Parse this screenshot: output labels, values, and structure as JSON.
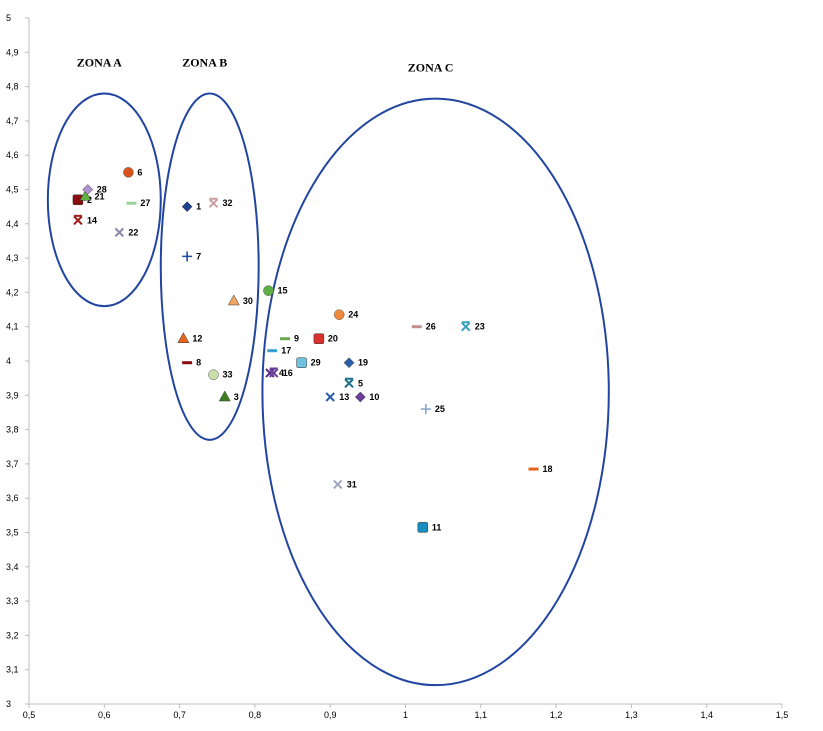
{
  "chart_data": {
    "type": "scatter",
    "title": "",
    "xlabel": "",
    "ylabel": "",
    "xlim": [
      0.5,
      1.5
    ],
    "ylim": [
      3,
      5
    ],
    "grid": false,
    "x_ticks": [
      "0,5",
      "0,6",
      "0,7",
      "0,8",
      "0,9",
      "1",
      "1,1",
      "1,2",
      "1,3",
      "1,4",
      "1,5"
    ],
    "y_ticks": [
      "3",
      "3,1",
      "3,2",
      "3,3",
      "3,4",
      "3,5",
      "3,6",
      "3,7",
      "3,8",
      "3,9",
      "4",
      "4,1",
      "4,2",
      "4,3",
      "4,4",
      "4,5",
      "4,6",
      "4,7",
      "4,8",
      "4,9",
      "5"
    ],
    "zones": [
      {
        "label": "ZONA A",
        "cx": 0.6,
        "cy": 4.47,
        "rx": 0.075,
        "ry": 0.31
      },
      {
        "label": "ZONA B",
        "cx": 0.74,
        "cy": 4.275,
        "rx": 0.065,
        "ry": 0.505
      },
      {
        "label": "ZONA C",
        "cx": 1.04,
        "cy": 3.91,
        "rx": 0.23,
        "ry": 0.855
      }
    ],
    "points": [
      {
        "label": "1",
        "x": 0.71,
        "y": 4.45,
        "marker": "diamond",
        "color": "#1f3f8f"
      },
      {
        "label": "2",
        "x": 0.565,
        "y": 4.47,
        "marker": "square",
        "color": "#8b0d0d"
      },
      {
        "label": "3",
        "x": 0.76,
        "y": 3.895,
        "marker": "triangle",
        "color": "#3d7d1f"
      },
      {
        "label": "4",
        "x": 0.82,
        "y": 3.965,
        "marker": "x",
        "color": "#5a2d82"
      },
      {
        "label": "5",
        "x": 0.925,
        "y": 3.935,
        "marker": "xstar",
        "color": "#1b6f8a"
      },
      {
        "label": "6",
        "x": 0.632,
        "y": 4.55,
        "marker": "circle",
        "color": "#d9541a"
      },
      {
        "label": "7",
        "x": 0.71,
        "y": 4.305,
        "marker": "plus",
        "color": "#1f4f9f"
      },
      {
        "label": "8",
        "x": 0.71,
        "y": 3.995,
        "marker": "dash",
        "color": "#8b0d0d"
      },
      {
        "label": "9",
        "x": 0.84,
        "y": 4.065,
        "marker": "dash",
        "color": "#6aa84f"
      },
      {
        "label": "10",
        "x": 0.94,
        "y": 3.895,
        "marker": "diamond",
        "color": "#6a3d9a"
      },
      {
        "label": "11",
        "x": 1.023,
        "y": 3.515,
        "marker": "square",
        "color": "#1a8fbf"
      },
      {
        "label": "12",
        "x": 0.705,
        "y": 4.065,
        "marker": "triangle",
        "color": "#e8641a"
      },
      {
        "label": "13",
        "x": 0.9,
        "y": 3.895,
        "marker": "x",
        "color": "#2b5faa"
      },
      {
        "label": "14",
        "x": 0.565,
        "y": 4.41,
        "marker": "xstar",
        "color": "#a02020"
      },
      {
        "label": "15",
        "x": 0.818,
        "y": 4.205,
        "marker": "circle",
        "color": "#5fb043"
      },
      {
        "label": "16",
        "x": 0.825,
        "y": 3.965,
        "marker": "xstar",
        "color": "#6a3d9a"
      },
      {
        "label": "17",
        "x": 0.823,
        "y": 4.03,
        "marker": "dash",
        "color": "#3a9fcf"
      },
      {
        "label": "18",
        "x": 1.17,
        "y": 3.685,
        "marker": "dash",
        "color": "#e8641a"
      },
      {
        "label": "19",
        "x": 0.925,
        "y": 3.995,
        "marker": "diamond",
        "color": "#2b5faa"
      },
      {
        "label": "20",
        "x": 0.885,
        "y": 4.065,
        "marker": "square",
        "color": "#d93030"
      },
      {
        "label": "21",
        "x": 0.575,
        "y": 4.48,
        "marker": "triangle",
        "color": "#5fb043"
      },
      {
        "label": "22",
        "x": 0.62,
        "y": 4.375,
        "marker": "x",
        "color": "#8a8ab0"
      },
      {
        "label": "23",
        "x": 1.08,
        "y": 4.1,
        "marker": "xstar",
        "color": "#3a9fbf"
      },
      {
        "label": "24",
        "x": 0.912,
        "y": 4.135,
        "marker": "circle",
        "color": "#f08a3a"
      },
      {
        "label": "25",
        "x": 1.027,
        "y": 3.86,
        "marker": "plus",
        "color": "#8aaad0"
      },
      {
        "label": "26",
        "x": 1.015,
        "y": 4.1,
        "marker": "dash",
        "color": "#c09090"
      },
      {
        "label": "27",
        "x": 0.636,
        "y": 4.46,
        "marker": "dash",
        "color": "#9ad09a"
      },
      {
        "label": "28",
        "x": 0.578,
        "y": 4.5,
        "marker": "diamond",
        "color": "#b090d0"
      },
      {
        "label": "29",
        "x": 0.862,
        "y": 3.995,
        "marker": "square",
        "color": "#70c0e0"
      },
      {
        "label": "30",
        "x": 0.772,
        "y": 4.175,
        "marker": "triangle",
        "color": "#f4a460"
      },
      {
        "label": "31",
        "x": 0.91,
        "y": 3.64,
        "marker": "x",
        "color": "#a0a8c0"
      },
      {
        "label": "32",
        "x": 0.745,
        "y": 4.46,
        "marker": "xstar",
        "color": "#c8a0a0"
      },
      {
        "label": "33",
        "x": 0.745,
        "y": 3.96,
        "marker": "circle",
        "color": "#c8e0a8"
      }
    ]
  }
}
